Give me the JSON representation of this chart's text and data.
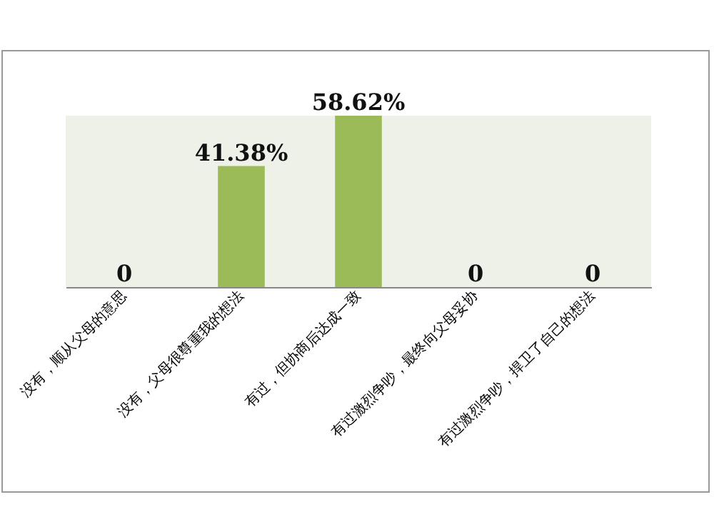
{
  "chart_data": {
    "type": "bar",
    "categories": [
      "没有，顺从父母的意思",
      "没有，父母很尊重我的想法",
      "有过，但协商后达成一致",
      "有过激烈争吵，最终向父母妥协",
      "有过激烈争吵，捍卫了自己的想法"
    ],
    "values": [
      0,
      41.38,
      58.62,
      0,
      0
    ],
    "value_labels": [
      "0",
      "41.38%",
      "58.62%",
      "0",
      "0"
    ],
    "color": "#9bbb59",
    "tick_labels": "x"
  }
}
